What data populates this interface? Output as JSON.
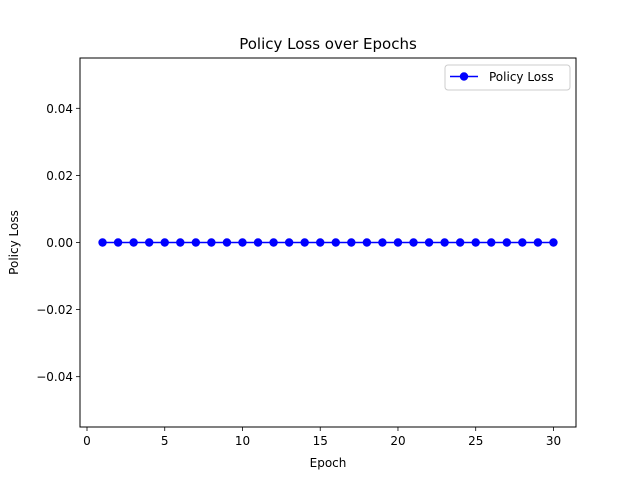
{
  "chart_data": {
    "type": "line",
    "title": "Policy Loss over Epochs",
    "xlabel": "Epoch",
    "ylabel": "Policy Loss",
    "xlim": [
      -0.45,
      31.45
    ],
    "ylim": [
      -0.055,
      0.055
    ],
    "xticks": [
      0,
      5,
      10,
      15,
      20,
      25,
      30
    ],
    "yticks": [
      -0.04,
      -0.02,
      0.0,
      0.02,
      0.04
    ],
    "xtick_labels": [
      "0",
      "5",
      "10",
      "15",
      "20",
      "25",
      "30"
    ],
    "ytick_labels": [
      "−0.04",
      "−0.02",
      "0.00",
      "0.02",
      "0.04"
    ],
    "grid": false,
    "legend_position": "top-right",
    "series": [
      {
        "name": "Policy Loss",
        "color": "#0000ff",
        "marker": "circle",
        "x": [
          1,
          2,
          3,
          4,
          5,
          6,
          7,
          8,
          9,
          10,
          11,
          12,
          13,
          14,
          15,
          16,
          17,
          18,
          19,
          20,
          21,
          22,
          23,
          24,
          25,
          26,
          27,
          28,
          29,
          30
        ],
        "values": [
          0,
          0,
          0,
          0,
          0,
          0,
          0,
          0,
          0,
          0,
          0,
          0,
          0,
          0,
          0,
          0,
          0,
          0,
          0,
          0,
          0,
          0,
          0,
          0,
          0,
          0,
          0,
          0,
          0,
          0
        ]
      }
    ]
  }
}
